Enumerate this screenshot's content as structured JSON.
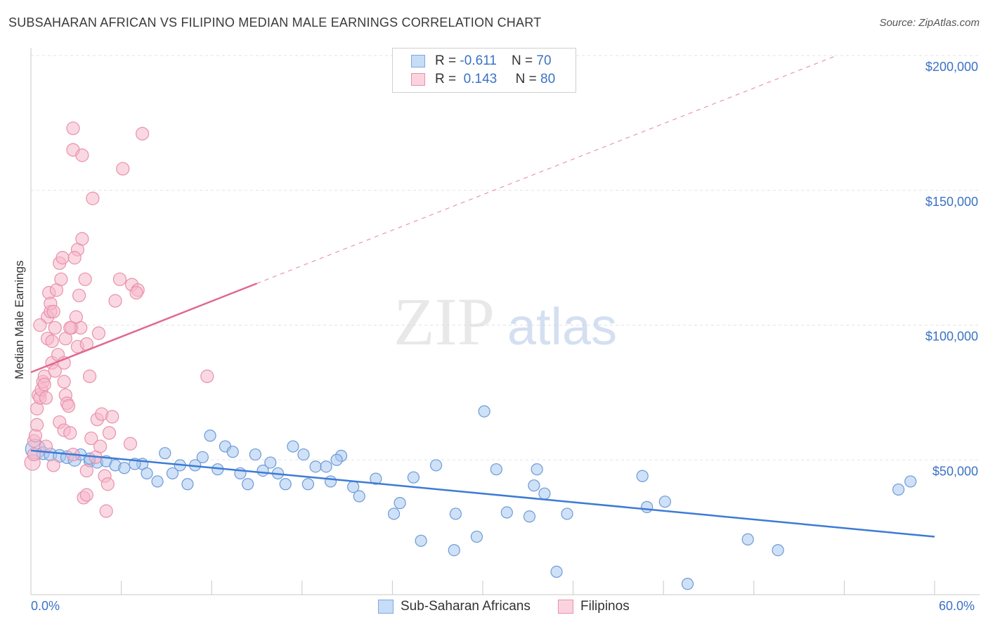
{
  "title": "SUBSAHARAN AFRICAN VS FILIPINO MEDIAN MALE EARNINGS CORRELATION CHART",
  "source": "Source: ZipAtlas.com",
  "watermark": {
    "zip": "ZIP",
    "atlas": "atlas"
  },
  "legend": {
    "rows": [
      {
        "r_label": "R =",
        "r_value": "-0.611",
        "n_label": "N =",
        "n_value": "70",
        "color": "#a8c8f0"
      },
      {
        "r_label": "R =",
        "r_value": "0.143",
        "n_label": "N =",
        "n_value": "80",
        "color": "#f5b8cb"
      }
    ]
  },
  "bottom_legend": [
    "Sub-Saharan Africans",
    "Filipinos"
  ],
  "chart_data": {
    "type": "scatter",
    "title": "SUBSAHARAN AFRICAN VS FILIPINO MEDIAN MALE EARNINGS CORRELATION CHART",
    "xlabel": "",
    "ylabel": "Median Male Earnings",
    "xlim": [
      0,
      60
    ],
    "ylim": [
      0,
      210000
    ],
    "x_tick_labels": [
      "0.0%",
      "60.0%"
    ],
    "y_tick_labels": [
      "$50,000",
      "$100,000",
      "$150,000",
      "$200,000"
    ],
    "y_ticks": [
      50000,
      100000,
      150000,
      200000
    ],
    "grid": true,
    "legend_position": "top-center",
    "colors": {
      "blue": "#3d7bd6",
      "blue_fill": "#a8c8f0",
      "pink": "#e06890",
      "pink_fill": "#f5b8cb",
      "axis_text": "#3b72c4"
    },
    "series": [
      {
        "name": "Sub-Saharan Africans",
        "trend": {
          "x0": 0,
          "y0": 53500,
          "x1": 60,
          "y1": 21500,
          "solid_until": 60
        },
        "points": [
          [
            0.3,
            54000,
            14
          ],
          [
            0.8,
            52500,
            9
          ],
          [
            1.3,
            52000,
            9
          ],
          [
            1.9,
            51500,
            9
          ],
          [
            2.4,
            51000,
            9
          ],
          [
            2.9,
            50000,
            9
          ],
          [
            3.3,
            52000,
            8
          ],
          [
            3.9,
            49500,
            8
          ],
          [
            4.4,
            49000,
            8
          ],
          [
            5.0,
            49500,
            8
          ],
          [
            5.6,
            48000,
            8
          ],
          [
            6.2,
            47000,
            8
          ],
          [
            7.4,
            48500,
            8
          ],
          [
            7.7,
            45000,
            8
          ],
          [
            8.4,
            42000,
            8
          ],
          [
            8.9,
            52500,
            8
          ],
          [
            9.4,
            45000,
            8
          ],
          [
            9.9,
            48000,
            8
          ],
          [
            10.4,
            41000,
            8
          ],
          [
            10.9,
            48000,
            8
          ],
          [
            11.4,
            51000,
            8
          ],
          [
            11.9,
            59000,
            8
          ],
          [
            12.4,
            46500,
            8
          ],
          [
            12.9,
            55000,
            8
          ],
          [
            13.4,
            53000,
            8
          ],
          [
            13.9,
            45000,
            8
          ],
          [
            14.4,
            41000,
            8
          ],
          [
            14.9,
            52000,
            8
          ],
          [
            15.4,
            46000,
            8
          ],
          [
            15.9,
            49000,
            8
          ],
          [
            16.4,
            45000,
            8
          ],
          [
            16.9,
            41000,
            8
          ],
          [
            17.4,
            55000,
            8
          ],
          [
            18.1,
            52000,
            8
          ],
          [
            18.4,
            41000,
            8
          ],
          [
            18.9,
            47500,
            8
          ],
          [
            19.6,
            47500,
            8
          ],
          [
            19.9,
            42000,
            8
          ],
          [
            20.6,
            51500,
            8
          ],
          [
            20.3,
            50000,
            8
          ],
          [
            21.4,
            40000,
            8
          ],
          [
            21.8,
            36500,
            8
          ],
          [
            22.9,
            43000,
            8
          ],
          [
            24.1,
            30000,
            8
          ],
          [
            24.5,
            34000,
            8
          ],
          [
            25.4,
            43500,
            8
          ],
          [
            25.9,
            20000,
            8
          ],
          [
            26.9,
            48000,
            8
          ],
          [
            28.1,
            16500,
            8
          ],
          [
            28.2,
            30000,
            8
          ],
          [
            29.6,
            21500,
            8
          ],
          [
            30.1,
            68000,
            8
          ],
          [
            30.9,
            46500,
            8
          ],
          [
            31.6,
            30500,
            8
          ],
          [
            33.1,
            29000,
            8
          ],
          [
            33.4,
            40500,
            8
          ],
          [
            33.6,
            46500,
            8
          ],
          [
            34.1,
            37500,
            8
          ],
          [
            34.9,
            8500,
            8
          ],
          [
            35.6,
            30000,
            8
          ],
          [
            40.6,
            44000,
            8
          ],
          [
            40.9,
            32500,
            8
          ],
          [
            42.1,
            34500,
            8
          ],
          [
            43.6,
            4000,
            8
          ],
          [
            47.6,
            20500,
            8
          ],
          [
            49.6,
            16500,
            8
          ],
          [
            57.6,
            39000,
            8
          ],
          [
            58.4,
            42000,
            8
          ],
          [
            3.9,
            50500,
            8
          ],
          [
            6.9,
            48500,
            8
          ]
        ]
      },
      {
        "name": "Filipinos",
        "trend": {
          "x0": 0,
          "y0": 82500,
          "x1": 53.5,
          "y1": 200000,
          "solid_until": 15
        },
        "points": [
          [
            0.1,
            49000,
            11
          ],
          [
            0.2,
            52000,
            9
          ],
          [
            0.2,
            57000,
            9
          ],
          [
            0.3,
            59000,
            9
          ],
          [
            0.4,
            63000,
            9
          ],
          [
            0.4,
            69000,
            9
          ],
          [
            0.5,
            74000,
            9
          ],
          [
            0.6,
            73000,
            9
          ],
          [
            0.7,
            76000,
            9
          ],
          [
            0.8,
            79000,
            9
          ],
          [
            0.9,
            81000,
            9
          ],
          [
            1.0,
            55000,
            9
          ],
          [
            1.0,
            73000,
            9
          ],
          [
            1.1,
            95000,
            9
          ],
          [
            1.1,
            103000,
            9
          ],
          [
            1.2,
            112000,
            9
          ],
          [
            1.3,
            105000,
            9
          ],
          [
            1.3,
            108000,
            9
          ],
          [
            1.4,
            86000,
            9
          ],
          [
            1.4,
            94000,
            9
          ],
          [
            1.5,
            105000,
            9
          ],
          [
            1.6,
            99000,
            9
          ],
          [
            1.6,
            83000,
            9
          ],
          [
            1.7,
            113000,
            9
          ],
          [
            1.8,
            89000,
            9
          ],
          [
            1.9,
            64000,
            9
          ],
          [
            1.9,
            123000,
            9
          ],
          [
            2.0,
            117000,
            9
          ],
          [
            2.1,
            125000,
            9
          ],
          [
            2.2,
            79000,
            9
          ],
          [
            2.2,
            61000,
            9
          ],
          [
            2.3,
            74000,
            9
          ],
          [
            2.3,
            95000,
            9
          ],
          [
            2.4,
            71000,
            9
          ],
          [
            2.5,
            70000,
            9
          ],
          [
            2.6,
            60000,
            9
          ],
          [
            2.7,
            99000,
            9
          ],
          [
            2.8,
            52000,
            9
          ],
          [
            2.8,
            165000,
            9
          ],
          [
            2.8,
            173000,
            9
          ],
          [
            3.1,
            92000,
            9
          ],
          [
            3.1,
            128000,
            9
          ],
          [
            3.2,
            111000,
            9
          ],
          [
            3.3,
            99000,
            9
          ],
          [
            3.4,
            132000,
            9
          ],
          [
            3.4,
            163000,
            9
          ],
          [
            3.5,
            36000,
            9
          ],
          [
            3.6,
            117000,
            9
          ],
          [
            3.7,
            93000,
            9
          ],
          [
            3.7,
            37000,
            9
          ],
          [
            3.7,
            46000,
            9
          ],
          [
            3.9,
            81000,
            9
          ],
          [
            4.0,
            58000,
            9
          ],
          [
            4.1,
            147000,
            9
          ],
          [
            4.3,
            51000,
            9
          ],
          [
            4.4,
            65000,
            9
          ],
          [
            4.5,
            97000,
            9
          ],
          [
            4.6,
            55000,
            9
          ],
          [
            4.7,
            67000,
            9
          ],
          [
            4.9,
            44000,
            9
          ],
          [
            5.0,
            31000,
            9
          ],
          [
            5.1,
            41000,
            9
          ],
          [
            5.2,
            60000,
            9
          ],
          [
            5.4,
            66000,
            9
          ],
          [
            5.6,
            109000,
            9
          ],
          [
            5.9,
            117000,
            9
          ],
          [
            6.1,
            158000,
            9
          ],
          [
            6.6,
            56000,
            9
          ],
          [
            6.7,
            115000,
            9
          ],
          [
            7.1,
            113000,
            9
          ],
          [
            7.4,
            171000,
            9
          ],
          [
            11.7,
            81000,
            9
          ],
          [
            0.6,
            100000,
            9
          ],
          [
            1.5,
            48000,
            9
          ],
          [
            2.9,
            125000,
            9
          ],
          [
            3.0,
            103000,
            9
          ],
          [
            2.2,
            86000,
            9
          ],
          [
            0.9,
            78000,
            9
          ],
          [
            2.6,
            99000,
            9
          ],
          [
            7.0,
            112000,
            9
          ]
        ]
      }
    ]
  }
}
